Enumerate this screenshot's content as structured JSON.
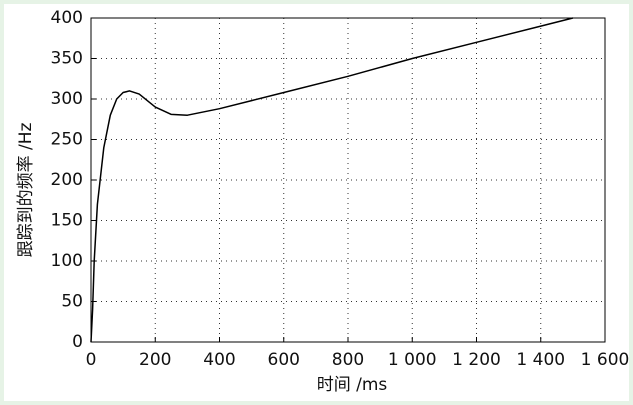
{
  "chart_data": {
    "type": "line",
    "x_label": "时间 /ms",
    "y_label": "跟踪到的频率 /Hz",
    "x": [
      0,
      5,
      10,
      20,
      40,
      60,
      80,
      100,
      120,
      150,
      200,
      250,
      300,
      400,
      500,
      600,
      800,
      1000,
      1200,
      1400,
      1500
    ],
    "values": [
      0,
      40,
      100,
      170,
      240,
      280,
      300,
      308,
      310,
      306,
      290,
      281,
      280,
      288,
      298,
      308,
      328,
      350,
      370,
      390,
      400
    ],
    "color": "#000000",
    "xlim": [
      0,
      1600
    ],
    "xticks": [
      0,
      200,
      400,
      600,
      800,
      {
        "value": 1000,
        "label": "1 000"
      },
      {
        "value": 1200,
        "label": "1 200"
      },
      {
        "value": 1400,
        "label": "1 400"
      },
      {
        "value": 1600,
        "label": "1 600"
      }
    ],
    "ylim": [
      0,
      400
    ],
    "yticks": [
      0,
      50,
      100,
      150,
      200,
      250,
      300,
      350,
      400
    ],
    "grid": true
  }
}
